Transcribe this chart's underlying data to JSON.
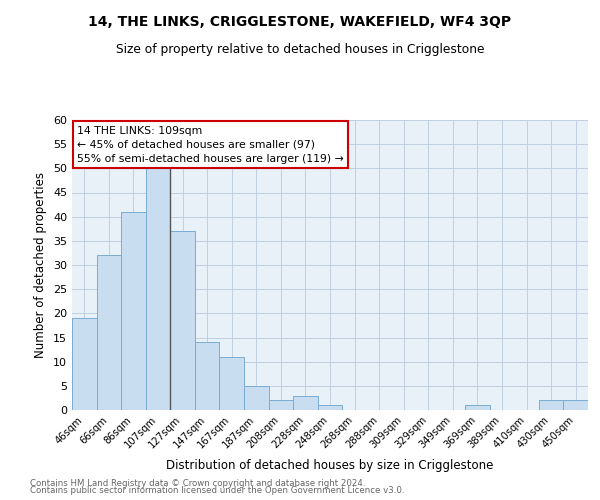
{
  "title": "14, THE LINKS, CRIGGLESTONE, WAKEFIELD, WF4 3QP",
  "subtitle": "Size of property relative to detached houses in Crigglestone",
  "xlabel": "Distribution of detached houses by size in Crigglestone",
  "ylabel": "Number of detached properties",
  "categories": [
    "46sqm",
    "66sqm",
    "86sqm",
    "107sqm",
    "127sqm",
    "147sqm",
    "167sqm",
    "187sqm",
    "208sqm",
    "228sqm",
    "248sqm",
    "268sqm",
    "288sqm",
    "309sqm",
    "329sqm",
    "349sqm",
    "369sqm",
    "389sqm",
    "410sqm",
    "430sqm",
    "450sqm"
  ],
  "values": [
    19,
    32,
    41,
    50,
    37,
    14,
    11,
    5,
    2,
    3,
    1,
    0,
    0,
    0,
    0,
    0,
    1,
    0,
    0,
    2,
    2
  ],
  "bar_color": "#c9ddf0",
  "bar_edge_color": "#7aadd4",
  "highlight_bar_index": 3,
  "annotation_title": "14 THE LINKS: 109sqm",
  "annotation_line1": "← 45% of detached houses are smaller (97)",
  "annotation_line2": "55% of semi-detached houses are larger (119) →",
  "annotation_box_color": "#ffffff",
  "annotation_box_edge": "#cc0000",
  "highlight_line_color": "#555555",
  "footer_line1": "Contains HM Land Registry data © Crown copyright and database right 2024.",
  "footer_line2": "Contains public sector information licensed under the Open Government Licence v3.0.",
  "bg_color": "#ffffff",
  "grid_color": "#c0d0e0",
  "axes_bg_color": "#e8f0f8",
  "ylim": [
    0,
    60
  ],
  "yticks": [
    0,
    5,
    10,
    15,
    20,
    25,
    30,
    35,
    40,
    45,
    50,
    55,
    60
  ]
}
